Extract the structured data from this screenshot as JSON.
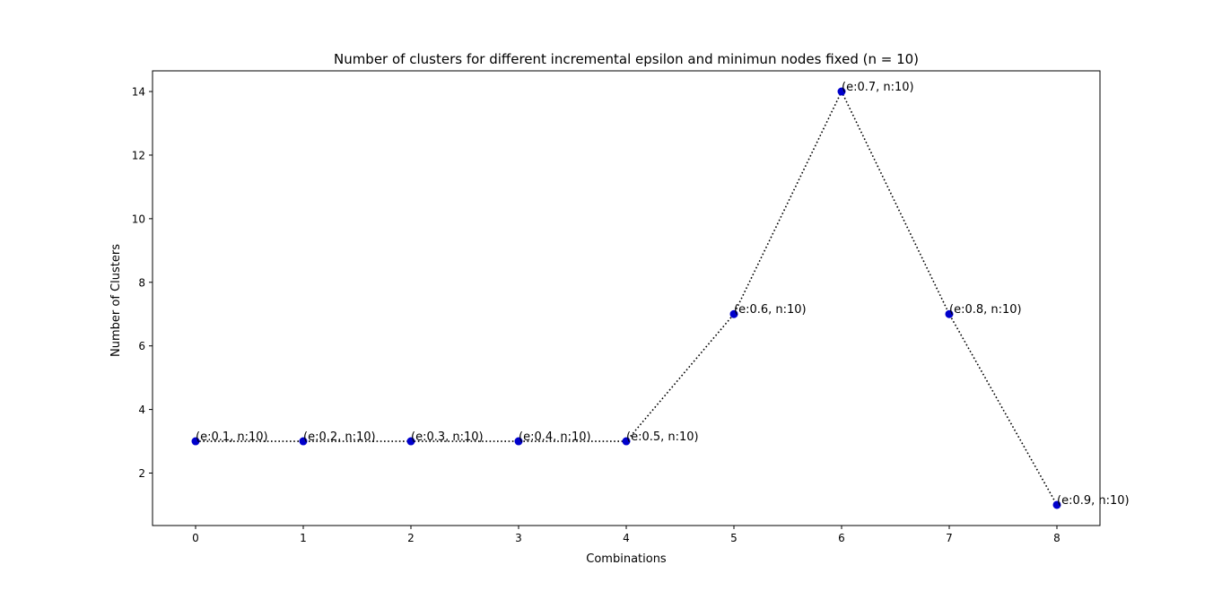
{
  "chart_data": {
    "type": "line",
    "title": "Number of clusters for different incremental epsilon and minimun nodes fixed (n = 10)",
    "xlabel": "Combinations",
    "ylabel": "Number of Clusters",
    "x": [
      0,
      1,
      2,
      3,
      4,
      5,
      6,
      7,
      8
    ],
    "y": [
      3,
      3,
      3,
      3,
      3,
      7,
      14,
      7,
      1
    ],
    "point_labels": [
      "(e:0.1, n:10)",
      "(e:0.2, n:10)",
      "(e:0.3, n:10)",
      "(e:0.4, n:10)",
      "(e:0.5, n:10)",
      "(e:0.6, n:10)",
      "(e:0.7, n:10)",
      "(e:0.8, n:10)",
      "(e:0.9, n:10)"
    ],
    "xticks": [
      "0",
      "1",
      "2",
      "3",
      "4",
      "5",
      "6",
      "7",
      "8"
    ],
    "yticks": [
      "2",
      "4",
      "6",
      "8",
      "10",
      "12",
      "14"
    ],
    "xlim": [
      -0.4,
      8.4
    ],
    "ylim": [
      0.35,
      14.65
    ],
    "grid": false,
    "legend": "none",
    "line_style": "dotted",
    "line_color": "#000000",
    "marker_color": "#0000cc"
  }
}
